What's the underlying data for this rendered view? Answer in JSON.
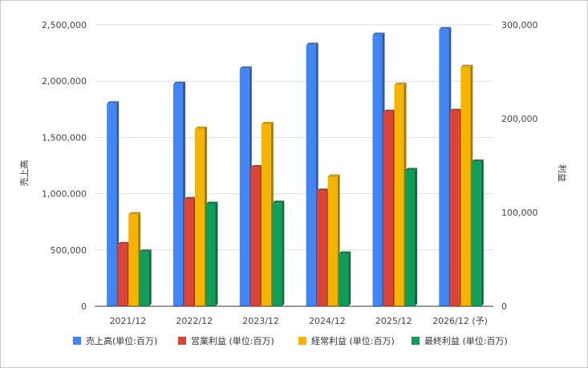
{
  "chart_data": {
    "type": "bar",
    "categories": [
      "2021/12",
      "2022/12",
      "2023/12",
      "2024/12",
      "2025/12",
      "2026/12 (予)"
    ],
    "left_axis": {
      "label": "売上高",
      "ylim": [
        0,
        2500000
      ],
      "ticks": [
        "0",
        "500,000",
        "1,000,000",
        "1,500,000",
        "2,000,000",
        "2,500,000"
      ]
    },
    "right_axis": {
      "label": "利益",
      "ylim": [
        0,
        300000
      ],
      "ticks": [
        "0",
        "100,000",
        "200,000",
        "300,000"
      ]
    },
    "series": [
      {
        "name": "売上高(単位:百万)",
        "axis": "left",
        "color": "#4285f4",
        "values": [
          1800000,
          1975000,
          2110000,
          2320000,
          2410000,
          2460000
        ]
      },
      {
        "name": "営業利益 (単位:百万)",
        "axis": "right",
        "color": "#db4437",
        "values": [
          66000,
          114000,
          148000,
          123000,
          207000,
          208000
        ]
      },
      {
        "name": "経常利益 (単位:百万)",
        "axis": "right",
        "color": "#f4b400",
        "values": [
          98000,
          189000,
          194000,
          138000,
          236000,
          255000
        ]
      },
      {
        "name": "最終利益 (単位:百万)",
        "axis": "right",
        "color": "#0f9d58",
        "values": [
          58000,
          109000,
          110000,
          56000,
          145000,
          154000
        ]
      }
    ],
    "grid": true,
    "legend_position": "bottom"
  }
}
